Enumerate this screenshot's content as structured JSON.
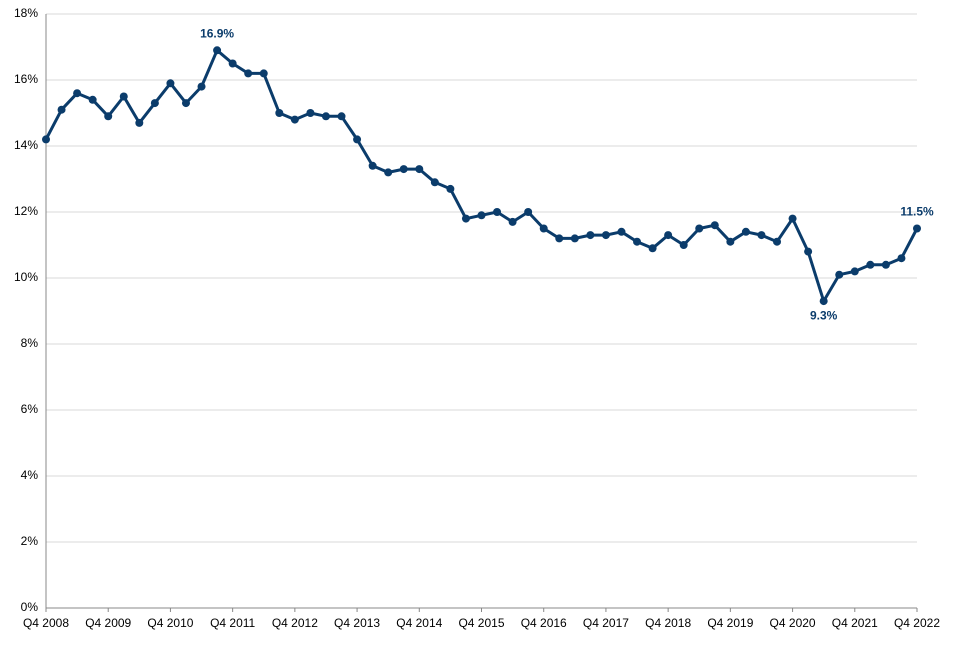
{
  "chart_data": {
    "type": "line",
    "categories": [
      "Q4 2008",
      null,
      null,
      null,
      "Q4 2009",
      null,
      null,
      null,
      "Q4 2010",
      null,
      null,
      null,
      "Q4 2011",
      null,
      null,
      null,
      "Q4 2012",
      null,
      null,
      null,
      "Q4 2013",
      null,
      null,
      null,
      "Q4 2014",
      null,
      null,
      null,
      "Q4 2015",
      null,
      null,
      null,
      "Q4 2016",
      null,
      null,
      null,
      "Q4 2017",
      null,
      null,
      null,
      "Q4 2018",
      null,
      null,
      null,
      "Q4 2019",
      null,
      null,
      null,
      "Q4 2020",
      null,
      null,
      null,
      "Q4 2021",
      null,
      null,
      null,
      "Q4 2022"
    ],
    "series": [
      {
        "color": "#0b3c6b",
        "values": [
          14.2,
          15.1,
          15.6,
          15.4,
          14.9,
          15.5,
          14.7,
          15.3,
          15.9,
          15.3,
          15.8,
          16.9,
          16.5,
          16.2,
          16.2,
          15.0,
          14.8,
          15.0,
          14.9,
          14.9,
          14.2,
          13.4,
          13.2,
          13.3,
          13.3,
          12.9,
          12.7,
          11.8,
          11.9,
          12.0,
          11.7,
          12.0,
          11.5,
          11.2,
          11.2,
          11.3,
          11.3,
          11.4,
          11.1,
          10.9,
          11.3,
          11.0,
          11.5,
          11.6,
          11.1,
          11.4,
          11.3,
          11.1,
          11.8,
          10.8,
          9.3,
          10.1,
          10.2,
          10.4,
          10.4,
          10.6,
          11.5
        ],
        "value_labels": [
          null,
          null,
          null,
          null,
          null,
          null,
          null,
          null,
          null,
          null,
          null,
          "16.9%",
          null,
          null,
          null,
          null,
          null,
          null,
          null,
          null,
          null,
          null,
          null,
          null,
          null,
          null,
          null,
          null,
          null,
          null,
          null,
          null,
          null,
          null,
          null,
          null,
          null,
          null,
          null,
          null,
          null,
          null,
          null,
          null,
          null,
          null,
          null,
          null,
          null,
          null,
          "9.3%",
          null,
          null,
          null,
          null,
          null,
          "11.5%"
        ]
      }
    ],
    "ylim": [
      0,
      18
    ],
    "yticks": [
      {
        "value": 0,
        "label": "0%"
      },
      {
        "value": 2,
        "label": "2%"
      },
      {
        "value": 4,
        "label": "4%"
      },
      {
        "value": 6,
        "label": "6%"
      },
      {
        "value": 8,
        "label": "8%"
      },
      {
        "value": 10,
        "label": "10%"
      },
      {
        "value": 12,
        "label": "12%"
      },
      {
        "value": 14,
        "label": "14%"
      },
      {
        "value": 16,
        "label": "16%"
      },
      {
        "value": 18,
        "label": "18%"
      }
    ],
    "grid": true
  }
}
